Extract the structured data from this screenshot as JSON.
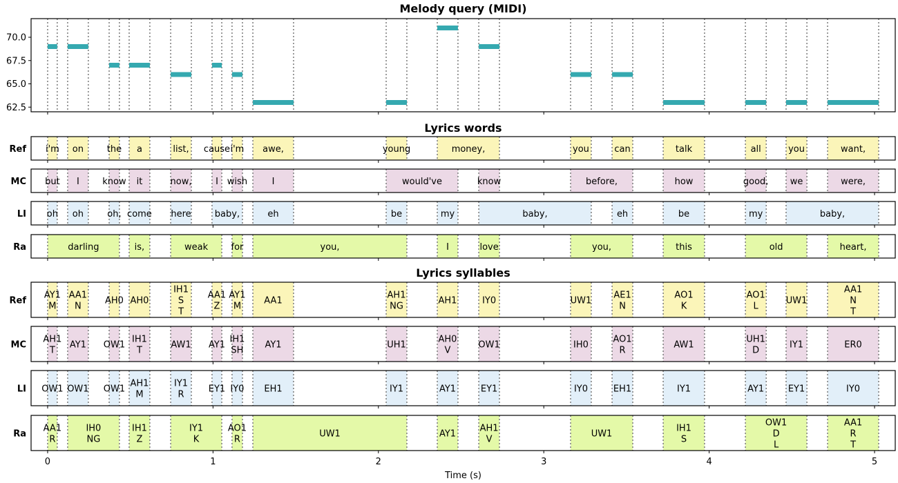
{
  "chart_data": {
    "type": "timeline",
    "xlabel": "Time (s)",
    "xlim": [
      -0.1,
      5.125
    ],
    "xticks": [
      0,
      1,
      2,
      3,
      4,
      5
    ],
    "colors": {
      "note": "#35a9b0",
      "Ref": "#fbf5b9",
      "MC": "#ecd9e6",
      "LI": "#e2eff9",
      "Ra": "#e4f9a8",
      "boundary": "#808080"
    },
    "melody": {
      "title": "Melody query (MIDI)",
      "ylim": [
        62,
        72
      ],
      "yticks": [
        "62.5",
        "65.0",
        "67.5",
        "70.0"
      ],
      "notes": [
        {
          "start": 0.0,
          "end": 0.058,
          "pitch": 69
        },
        {
          "start": 0.121,
          "end": 0.246,
          "pitch": 69
        },
        {
          "start": 0.372,
          "end": 0.434,
          "pitch": 67
        },
        {
          "start": 0.493,
          "end": 0.618,
          "pitch": 67
        },
        {
          "start": 0.744,
          "end": 0.869,
          "pitch": 66
        },
        {
          "start": 0.994,
          "end": 1.053,
          "pitch": 67
        },
        {
          "start": 1.115,
          "end": 1.178,
          "pitch": 66
        },
        {
          "start": 1.241,
          "end": 1.487,
          "pitch": 63
        },
        {
          "start": 2.047,
          "end": 2.172,
          "pitch": 63
        },
        {
          "start": 2.356,
          "end": 2.481,
          "pitch": 71
        },
        {
          "start": 2.607,
          "end": 2.732,
          "pitch": 69
        },
        {
          "start": 3.162,
          "end": 3.287,
          "pitch": 66
        },
        {
          "start": 3.413,
          "end": 3.538,
          "pitch": 66
        },
        {
          "start": 3.722,
          "end": 3.972,
          "pitch": 63
        },
        {
          "start": 4.219,
          "end": 4.345,
          "pitch": 63
        },
        {
          "start": 4.465,
          "end": 4.591,
          "pitch": 63
        },
        {
          "start": 4.716,
          "end": 5.025,
          "pitch": 63
        }
      ]
    },
    "words": {
      "title": "Lyrics words",
      "rows": [
        {
          "name": "Ref",
          "segments": [
            [
              0,
              0.058,
              "i'm"
            ],
            [
              0.121,
              0.246,
              "on"
            ],
            [
              0.372,
              0.434,
              "the"
            ],
            [
              0.493,
              0.618,
              "a"
            ],
            [
              0.744,
              0.869,
              "list,"
            ],
            [
              0.994,
              1.053,
              "cause"
            ],
            [
              1.115,
              1.178,
              "i'm"
            ],
            [
              1.241,
              1.487,
              "awe,"
            ],
            [
              2.047,
              2.172,
              "young"
            ],
            [
              2.356,
              2.732,
              "money,"
            ],
            [
              3.162,
              3.287,
              "you"
            ],
            [
              3.413,
              3.538,
              "can"
            ],
            [
              3.722,
              3.972,
              "talk"
            ],
            [
              4.219,
              4.345,
              "all"
            ],
            [
              4.465,
              4.591,
              "you"
            ],
            [
              4.716,
              5.025,
              "want,"
            ]
          ]
        },
        {
          "name": "MC",
          "segments": [
            [
              0,
              0.058,
              "but"
            ],
            [
              0.121,
              0.246,
              "I"
            ],
            [
              0.372,
              0.434,
              "know"
            ],
            [
              0.493,
              0.618,
              "it"
            ],
            [
              0.744,
              0.869,
              "now,"
            ],
            [
              0.994,
              1.053,
              "I"
            ],
            [
              1.115,
              1.178,
              "wish"
            ],
            [
              1.241,
              1.487,
              "I"
            ],
            [
              2.047,
              2.481,
              "would've"
            ],
            [
              2.607,
              2.732,
              "know"
            ],
            [
              3.162,
              3.538,
              "before,"
            ],
            [
              3.722,
              3.972,
              "how"
            ],
            [
              4.219,
              4.345,
              "good,"
            ],
            [
              4.465,
              4.591,
              "we"
            ],
            [
              4.716,
              5.025,
              "were,"
            ]
          ]
        },
        {
          "name": "LI",
          "segments": [
            [
              0,
              0.058,
              "oh"
            ],
            [
              0.121,
              0.246,
              "oh"
            ],
            [
              0.372,
              0.434,
              "oh,"
            ],
            [
              0.493,
              0.618,
              "come"
            ],
            [
              0.744,
              0.869,
              "here"
            ],
            [
              0.994,
              1.178,
              "baby,"
            ],
            [
              1.241,
              1.487,
              "eh"
            ],
            [
              2.047,
              2.172,
              "be"
            ],
            [
              2.356,
              2.481,
              "my"
            ],
            [
              2.607,
              3.287,
              "baby,"
            ],
            [
              3.413,
              3.538,
              "eh"
            ],
            [
              3.722,
              3.972,
              "be"
            ],
            [
              4.219,
              4.345,
              "my"
            ],
            [
              4.465,
              5.025,
              "baby,"
            ]
          ]
        },
        {
          "name": "Ra",
          "segments": [
            [
              0,
              0.434,
              "darling"
            ],
            [
              0.493,
              0.618,
              "is,"
            ],
            [
              0.744,
              1.053,
              "weak"
            ],
            [
              1.115,
              1.178,
              "for"
            ],
            [
              1.241,
              2.172,
              "you,"
            ],
            [
              2.356,
              2.481,
              "I"
            ],
            [
              2.607,
              2.732,
              "love"
            ],
            [
              3.162,
              3.538,
              "you,"
            ],
            [
              3.722,
              3.972,
              "this"
            ],
            [
              4.219,
              4.591,
              "old"
            ],
            [
              4.716,
              5.025,
              "heart,"
            ]
          ]
        }
      ]
    },
    "syllables": {
      "title": "Lyrics syllables",
      "rows": [
        {
          "name": "Ref",
          "segments": [
            [
              0,
              0.058,
              [
                "AY1",
                "M"
              ]
            ],
            [
              0.121,
              0.246,
              [
                "AA1",
                "N"
              ]
            ],
            [
              0.372,
              0.434,
              [
                "AH0"
              ]
            ],
            [
              0.493,
              0.618,
              [
                "AH0"
              ]
            ],
            [
              0.744,
              0.869,
              [
                "IH1",
                "S",
                "T"
              ]
            ],
            [
              0.994,
              1.053,
              [
                "AA1",
                "Z"
              ]
            ],
            [
              1.115,
              1.178,
              [
                "AY1",
                "M"
              ]
            ],
            [
              1.241,
              1.487,
              [
                "AA1"
              ]
            ],
            [
              2.047,
              2.172,
              [
                "AH1",
                "NG"
              ]
            ],
            [
              2.356,
              2.481,
              [
                "AH1"
              ]
            ],
            [
              2.607,
              2.732,
              [
                "IY0"
              ]
            ],
            [
              3.162,
              3.287,
              [
                "UW1"
              ]
            ],
            [
              3.413,
              3.538,
              [
                "AE1",
                "N"
              ]
            ],
            [
              3.722,
              3.972,
              [
                "AO1",
                "K"
              ]
            ],
            [
              4.219,
              4.345,
              [
                "AO1",
                "L"
              ]
            ],
            [
              4.465,
              4.591,
              [
                "UW1"
              ]
            ],
            [
              4.716,
              5.025,
              [
                "AA1",
                "N",
                "T"
              ]
            ]
          ]
        },
        {
          "name": "MC",
          "segments": [
            [
              0,
              0.058,
              [
                "AH1",
                "T"
              ]
            ],
            [
              0.121,
              0.246,
              [
                "AY1"
              ]
            ],
            [
              0.372,
              0.434,
              [
                "OW1"
              ]
            ],
            [
              0.493,
              0.618,
              [
                "IH1",
                "T"
              ]
            ],
            [
              0.744,
              0.869,
              [
                "AW1"
              ]
            ],
            [
              0.994,
              1.053,
              [
                "AY1"
              ]
            ],
            [
              1.115,
              1.178,
              [
                "IH1",
                "SH"
              ]
            ],
            [
              1.241,
              1.487,
              [
                "AY1"
              ]
            ],
            [
              2.047,
              2.172,
              [
                "UH1"
              ]
            ],
            [
              2.356,
              2.481,
              [
                "AH0",
                "V"
              ]
            ],
            [
              2.607,
              2.732,
              [
                "OW1"
              ]
            ],
            [
              3.162,
              3.287,
              [
                "IH0"
              ]
            ],
            [
              3.413,
              3.538,
              [
                "AO1",
                "R"
              ]
            ],
            [
              3.722,
              3.972,
              [
                "AW1"
              ]
            ],
            [
              4.219,
              4.345,
              [
                "UH1",
                "D"
              ]
            ],
            [
              4.465,
              4.591,
              [
                "IY1"
              ]
            ],
            [
              4.716,
              5.025,
              [
                "ER0"
              ]
            ]
          ]
        },
        {
          "name": "LI",
          "segments": [
            [
              0,
              0.058,
              [
                "OW1"
              ]
            ],
            [
              0.121,
              0.246,
              [
                "OW1"
              ]
            ],
            [
              0.372,
              0.434,
              [
                "OW1"
              ]
            ],
            [
              0.493,
              0.618,
              [
                "AH1",
                "M"
              ]
            ],
            [
              0.744,
              0.869,
              [
                "IY1",
                "R"
              ]
            ],
            [
              0.994,
              1.053,
              [
                "EY1"
              ]
            ],
            [
              1.115,
              1.178,
              [
                "IY0"
              ]
            ],
            [
              1.241,
              1.487,
              [
                "EH1"
              ]
            ],
            [
              2.047,
              2.172,
              [
                "IY1"
              ]
            ],
            [
              2.356,
              2.481,
              [
                "AY1"
              ]
            ],
            [
              2.607,
              2.732,
              [
                "EY1"
              ]
            ],
            [
              3.162,
              3.287,
              [
                "IY0"
              ]
            ],
            [
              3.413,
              3.538,
              [
                "EH1"
              ]
            ],
            [
              3.722,
              3.972,
              [
                "IY1"
              ]
            ],
            [
              4.219,
              4.345,
              [
                "AY1"
              ]
            ],
            [
              4.465,
              4.591,
              [
                "EY1"
              ]
            ],
            [
              4.716,
              5.025,
              [
                "IY0"
              ]
            ]
          ]
        },
        {
          "name": "Ra",
          "segments": [
            [
              0,
              0.058,
              [
                "AA1",
                "R"
              ]
            ],
            [
              0.121,
              0.434,
              [
                "IH0",
                "NG"
              ]
            ],
            [
              0.493,
              0.618,
              [
                "IH1",
                "Z"
              ]
            ],
            [
              0.744,
              1.053,
              [
                "IY1",
                "K"
              ]
            ],
            [
              1.115,
              1.178,
              [
                "AO1",
                "R"
              ]
            ],
            [
              1.241,
              2.172,
              [
                "UW1"
              ]
            ],
            [
              2.356,
              2.481,
              [
                "AY1"
              ]
            ],
            [
              2.607,
              2.732,
              [
                "AH1",
                "V"
              ]
            ],
            [
              3.162,
              3.538,
              [
                "UW1"
              ]
            ],
            [
              3.722,
              3.972,
              [
                "IH1",
                "S"
              ]
            ],
            [
              4.219,
              4.591,
              [
                "OW1",
                "D",
                "L"
              ]
            ],
            [
              4.716,
              5.025,
              [
                "AA1",
                "R",
                "T"
              ]
            ]
          ]
        }
      ]
    }
  }
}
